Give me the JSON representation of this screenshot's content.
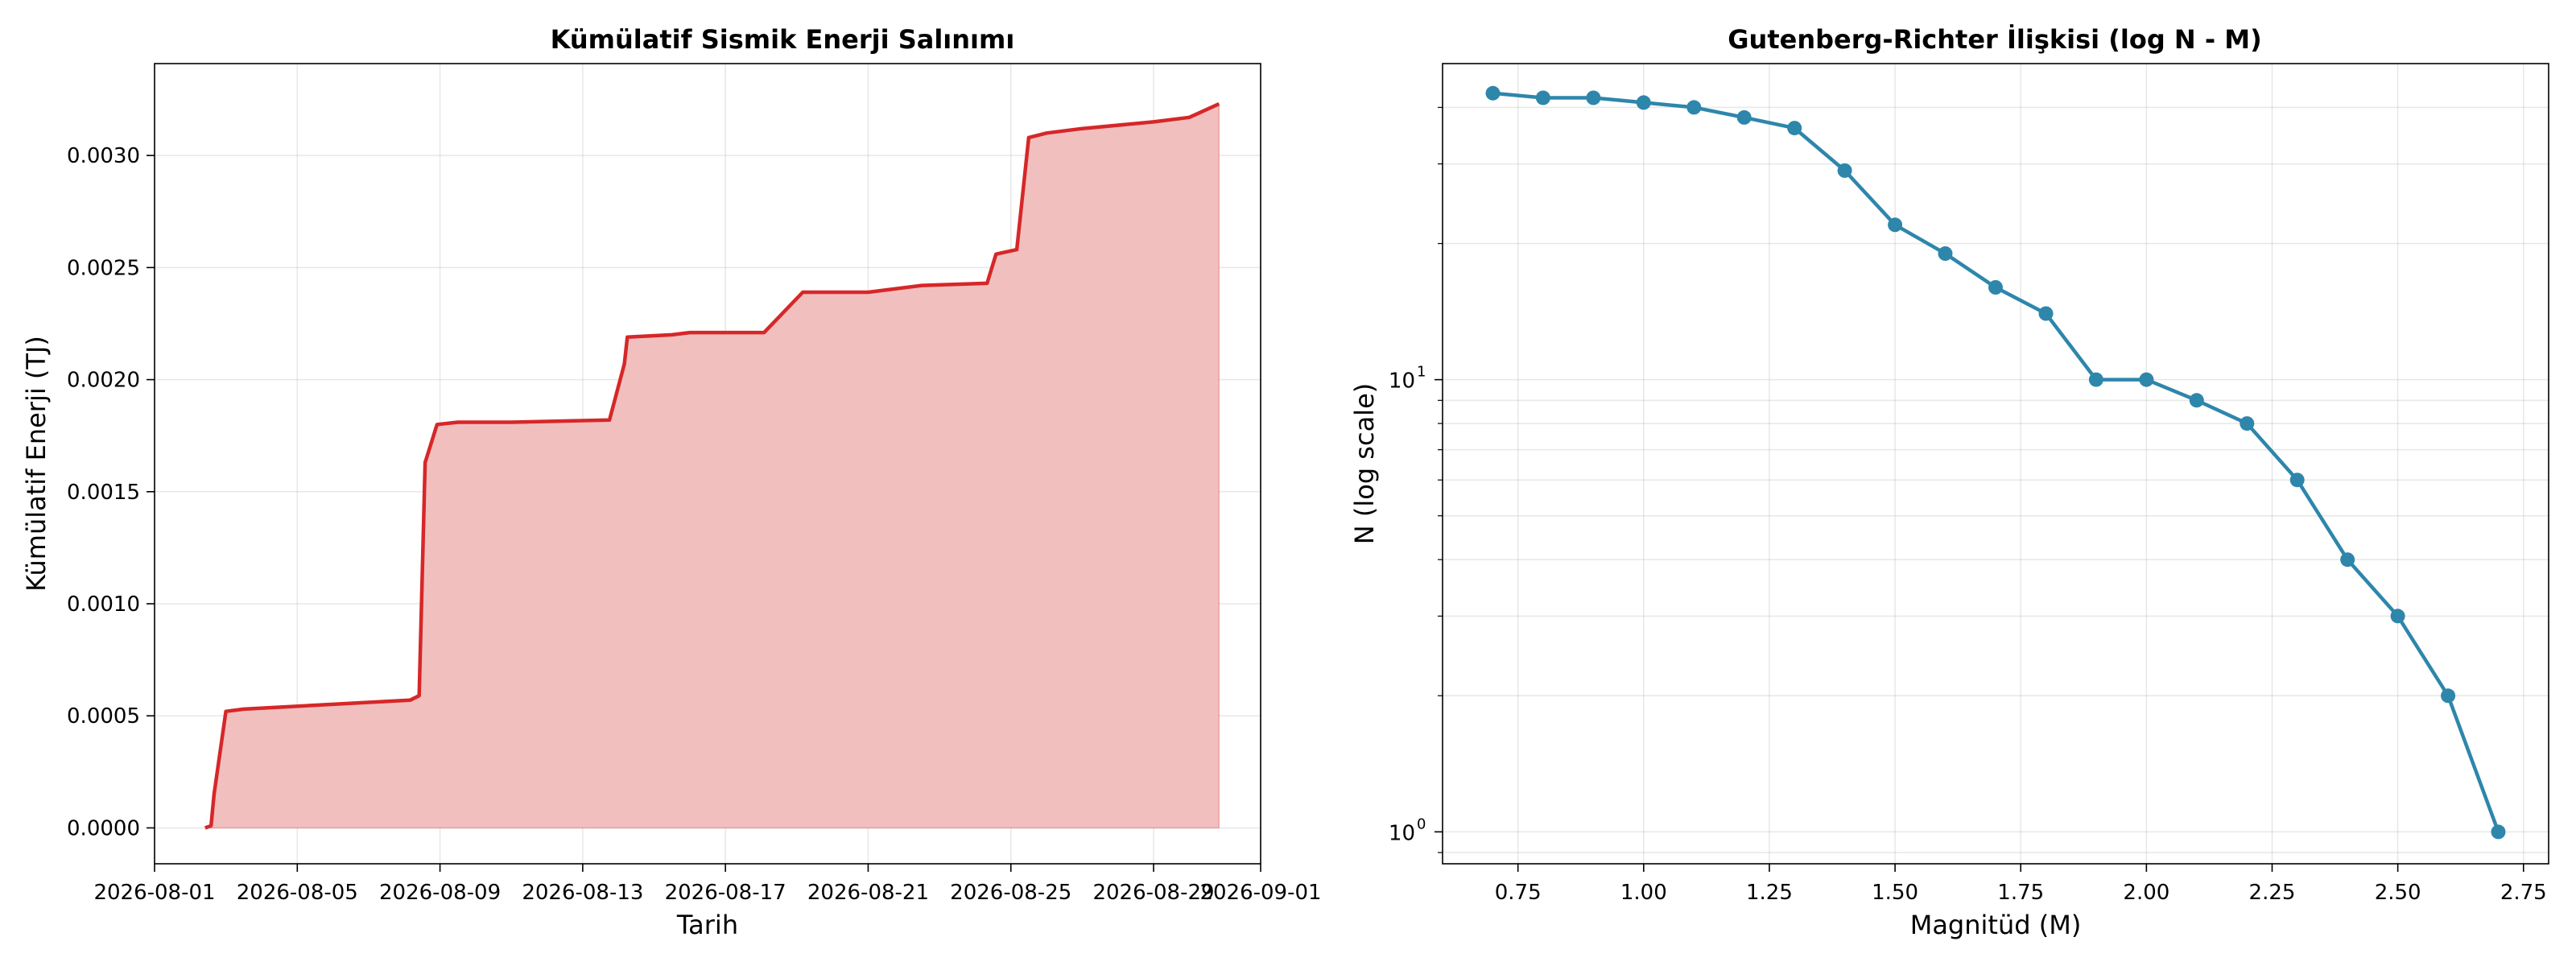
{
  "chart_data": [
    {
      "type": "area",
      "title": "Kümülatif Sismik Enerji Salınımı",
      "xlabel": "Tarih",
      "ylabel": "Kümülatif Enerji (TJ)",
      "x_tick_labels": [
        "2026-08-01",
        "2026-08-05",
        "2026-08-09",
        "2026-08-13",
        "2026-08-17",
        "2026-08-21",
        "2026-08-25",
        "2026-08-29",
        "2026-09-01"
      ],
      "y_tick_labels": [
        "0.0000",
        "0.0005",
        "0.0010",
        "0.0015",
        "0.0020",
        "0.0025",
        "0.0030"
      ],
      "ylim": [
        -0.00016,
        0.00341
      ],
      "xlim": [
        "2026-08-01",
        "2026-09-01"
      ],
      "grid": true,
      "line_color": "#d62728",
      "fill_color": "#f2bfbf",
      "series": [
        {
          "x": [
            "2026-08-02 10:00",
            "2026-08-02 14:00",
            "2026-08-02 16:00",
            "2026-08-03 00:00",
            "2026-08-03 12:00",
            "2026-08-08 04:00",
            "2026-08-08 10:00",
            "2026-08-08 14:00",
            "2026-08-08 22:00",
            "2026-08-09 12:00",
            "2026-08-10 00:00",
            "2026-08-11 00:00",
            "2026-08-13 18:00",
            "2026-08-14 04:00",
            "2026-08-14 06:00",
            "2026-08-15 12:00",
            "2026-08-16 00:00",
            "2026-08-18 02:00",
            "2026-08-19 04:00",
            "2026-08-21 00:00",
            "2026-08-22 12:00",
            "2026-08-24 08:00",
            "2026-08-24 14:00",
            "2026-08-25 04:00",
            "2026-08-25 12:00",
            "2026-08-26 00:00",
            "2026-08-27 00:00",
            "2026-08-29 00:00",
            "2026-08-30 00:00",
            "2026-08-30 20:00"
          ],
          "values": [
            0.0,
            1e-05,
            0.00015,
            0.00052,
            0.00053,
            0.00057,
            0.00059,
            0.00163,
            0.0018,
            0.00181,
            0.00181,
            0.00181,
            0.00182,
            0.00207,
            0.00219,
            0.0022,
            0.00221,
            0.00221,
            0.00239,
            0.00239,
            0.00242,
            0.00243,
            0.00256,
            0.00258,
            0.00308,
            0.0031,
            0.00312,
            0.00315,
            0.00317,
            0.00323
          ]
        }
      ]
    },
    {
      "type": "line",
      "title": "Gutenberg-Richter İlişkisi (log N - M)",
      "xlabel": "Magnitüd (M)",
      "ylabel": "N (log scale)",
      "yscale": "log",
      "x_tick_labels": [
        "0.75",
        "1.00",
        "1.25",
        "1.50",
        "1.75",
        "2.00",
        "2.25",
        "2.50",
        "2.75"
      ],
      "y_tick_labels": [
        {
          "base": "10",
          "exp": "0"
        },
        {
          "base": "10",
          "exp": "1"
        }
      ],
      "xlim": [
        0.6,
        2.8
      ],
      "ylim": [
        0.85,
        50
      ],
      "grid": true,
      "line_color": "#2e86ab",
      "series": [
        {
          "x": [
            0.7,
            0.8,
            0.9,
            1.0,
            1.1,
            1.2,
            1.3,
            1.4,
            1.5,
            1.6,
            1.7,
            1.8,
            1.9,
            2.0,
            2.1,
            2.2,
            2.3,
            2.4,
            2.5,
            2.6,
            2.7
          ],
          "values": [
            43,
            42,
            42,
            41,
            40,
            38,
            36,
            29,
            22,
            19,
            16,
            14,
            10,
            10,
            9,
            8,
            6,
            4,
            3,
            2,
            1
          ]
        }
      ]
    }
  ]
}
